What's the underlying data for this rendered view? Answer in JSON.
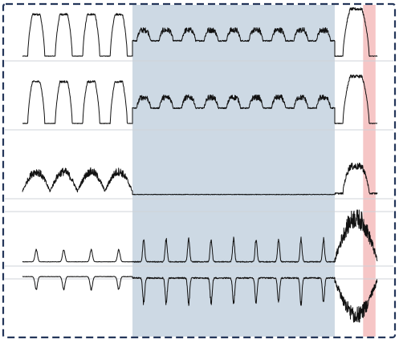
{
  "chart_data": {
    "type": "line",
    "panel_count": 5,
    "x_range": [
      0,
      100
    ],
    "grid": false,
    "legend": "none",
    "highlighted_regions": [
      {
        "x_range": [
          31,
          88
        ],
        "color": "#b8c9d9",
        "opacity": 0.7
      },
      {
        "x_range": [
          96,
          99.5
        ],
        "color": "#f4b8b8",
        "opacity": 0.8
      }
    ],
    "series": [
      {
        "panel": 1,
        "segments": [
          {
            "x_range": [
              0,
              31
            ],
            "cycles": 4,
            "level": 0.85,
            "base": 0.06,
            "noise": 0.03,
            "shape": "plateau"
          },
          {
            "x_range": [
              31,
              88
            ],
            "cycles": 9,
            "level": 0.55,
            "base": 0.35,
            "noise": 0.08,
            "shape": "plateau"
          },
          {
            "x_range": [
              88,
              100
            ],
            "cycles": 1,
            "level": 0.95,
            "base": 0.06,
            "noise": 0.04,
            "shape": "plateau"
          }
        ]
      },
      {
        "panel": 2,
        "segments": [
          {
            "x_range": [
              0,
              31
            ],
            "cycles": 4,
            "level": 0.85,
            "base": 0.06,
            "noise": 0.03,
            "shape": "plateau"
          },
          {
            "x_range": [
              31,
              88
            ],
            "cycles": 9,
            "level": 0.55,
            "base": 0.35,
            "noise": 0.08,
            "shape": "plateau"
          },
          {
            "x_range": [
              88,
              100
            ],
            "cycles": 1,
            "level": 0.95,
            "base": 0.06,
            "noise": 0.04,
            "shape": "plateau"
          }
        ]
      },
      {
        "panel": 3,
        "segments": [
          {
            "x_range": [
              0,
              31
            ],
            "cycles": 4,
            "level": 0.45,
            "base": 0.08,
            "noise": 0.12,
            "shape": "hump"
          },
          {
            "x_range": [
              31,
              88
            ],
            "cycles": 9,
            "level": 0.02,
            "base": 0.02,
            "noise": 0.01,
            "shape": "flat"
          },
          {
            "x_range": [
              88,
              100
            ],
            "cycles": 1,
            "level": 0.55,
            "base": 0.04,
            "noise": 0.1,
            "shape": "plateau"
          }
        ]
      },
      {
        "panel": 4,
        "segments": [
          {
            "x_range": [
              0,
              31
            ],
            "cycles": 4,
            "level": 0.25,
            "base": 0.02,
            "noise": 0.02,
            "shape": "spike"
          },
          {
            "x_range": [
              31,
              88
            ],
            "cycles": 9,
            "level": 0.45,
            "base": 0.02,
            "noise": 0.06,
            "shape": "spike"
          },
          {
            "x_range": [
              88,
              100
            ],
            "cycles": 1,
            "level": 0.85,
            "base": 0.05,
            "noise": 0.3,
            "shape": "burst"
          }
        ]
      },
      {
        "panel": 5,
        "inverted": true,
        "segments": [
          {
            "x_range": [
              0,
              31
            ],
            "cycles": 4,
            "level": 0.3,
            "base": 0.02,
            "noise": 0.03,
            "shape": "spike"
          },
          {
            "x_range": [
              31,
              88
            ],
            "cycles": 9,
            "level": 0.6,
            "base": 0.05,
            "noise": 0.1,
            "shape": "spike"
          },
          {
            "x_range": [
              88,
              100
            ],
            "cycles": 1,
            "level": 0.85,
            "base": 0.1,
            "noise": 0.3,
            "shape": "burst"
          }
        ]
      }
    ]
  },
  "colors": {
    "frame_border": "#24365a",
    "divider": "#cfd3d8",
    "trace": "#111111"
  }
}
